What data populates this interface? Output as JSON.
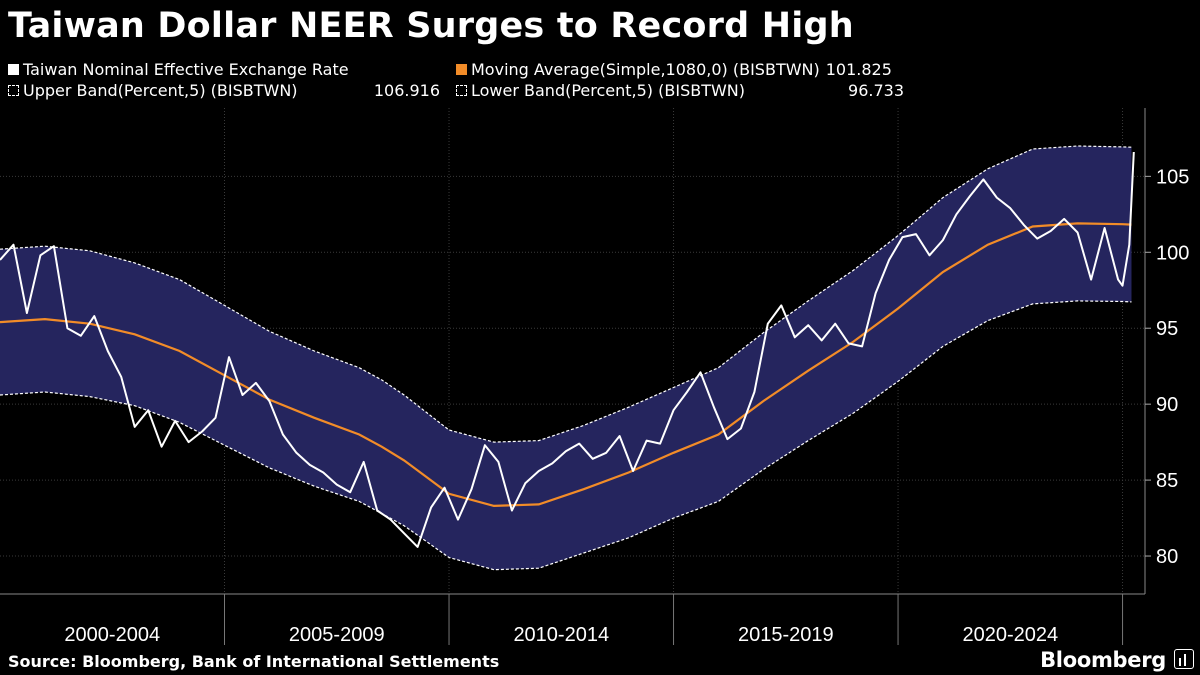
{
  "header": {
    "title": "Taiwan Dollar NEER Surges to Record High"
  },
  "legend": {
    "items": [
      {
        "label": "Taiwan Nominal Effective Exchange Rate",
        "value": "",
        "swatch": "#ffffff"
      },
      {
        "label": "Moving Average(Simple,1080,0) (BISBTWN)",
        "value": "101.825",
        "swatch": "#f28c28"
      },
      {
        "label": "Upper Band(Percent,5) (BISBTWN)",
        "value": "106.916",
        "swatch": "#ffffff"
      },
      {
        "label": "Lower Band(Percent,5) (BISBTWN)",
        "value": "96.733",
        "swatch": "#ffffff"
      }
    ]
  },
  "footer": {
    "source": "Source: Bloomberg, Bank of International Settlements",
    "brand": "Bloomberg"
  },
  "colors": {
    "background": "#000000",
    "band_fill": "#25255e",
    "series": "#ffffff",
    "moving_average": "#f28c28",
    "grid": "#3a3a3a"
  },
  "chart_data": {
    "type": "line",
    "title": "Taiwan Dollar NEER Surges to Record High",
    "xlabel": "",
    "ylabel": "",
    "x_tick_labels": [
      "2000-2004",
      "2005-2009",
      "2010-2014",
      "2015-2019",
      "2020-2024"
    ],
    "xlim": [
      2000.0,
      2025.5
    ],
    "ylim": [
      77.5,
      109.5
    ],
    "y_ticks": [
      80,
      85,
      90,
      95,
      100,
      105
    ],
    "y_axis_side": "right",
    "grid": true,
    "legend_position": "top",
    "series": [
      {
        "name": "Taiwan Nominal Effective Exchange Rate",
        "color": "#ffffff",
        "x": [
          2000.0,
          2000.3,
          2000.6,
          2000.9,
          2001.2,
          2001.5,
          2001.8,
          2002.1,
          2002.4,
          2002.7,
          2003.0,
          2003.3,
          2003.6,
          2003.9,
          2004.2,
          2004.5,
          2004.8,
          2005.1,
          2005.4,
          2005.7,
          2006.0,
          2006.3,
          2006.6,
          2006.9,
          2007.2,
          2007.5,
          2007.8,
          2008.1,
          2008.4,
          2008.7,
          2009.0,
          2009.3,
          2009.6,
          2009.9,
          2010.2,
          2010.5,
          2010.8,
          2011.1,
          2011.4,
          2011.7,
          2012.0,
          2012.3,
          2012.6,
          2012.9,
          2013.2,
          2013.5,
          2013.8,
          2014.1,
          2014.4,
          2014.7,
          2015.0,
          2015.3,
          2015.6,
          2015.9,
          2016.2,
          2016.5,
          2016.8,
          2017.1,
          2017.4,
          2017.7,
          2018.0,
          2018.3,
          2018.6,
          2018.9,
          2019.2,
          2019.5,
          2019.8,
          2020.1,
          2020.4,
          2020.7,
          2021.0,
          2021.3,
          2021.6,
          2021.9,
          2022.2,
          2022.5,
          2022.8,
          2023.1,
          2023.4,
          2023.7,
          2024.0,
          2024.3,
          2024.6,
          2024.9,
          2025.0,
          2025.15,
          2025.25
        ],
        "y": [
          99.5,
          100.5,
          96.0,
          99.8,
          100.4,
          95.0,
          94.5,
          95.8,
          93.5,
          91.8,
          88.5,
          89.6,
          87.2,
          88.9,
          87.5,
          88.2,
          89.1,
          93.1,
          90.6,
          91.4,
          90.2,
          88.0,
          86.8,
          86.0,
          85.5,
          84.7,
          84.2,
          86.2,
          83.0,
          82.4,
          81.5,
          80.6,
          83.2,
          84.5,
          82.4,
          84.4,
          87.3,
          86.2,
          83.0,
          84.8,
          85.6,
          86.1,
          86.9,
          87.4,
          86.4,
          86.8,
          87.9,
          85.6,
          87.6,
          87.4,
          89.6,
          90.8,
          92.1,
          89.8,
          87.7,
          88.4,
          90.8,
          95.3,
          96.5,
          94.4,
          95.2,
          94.2,
          95.3,
          94.0,
          93.8,
          97.3,
          99.5,
          101.0,
          101.2,
          99.8,
          100.8,
          102.5,
          103.7,
          104.8,
          103.6,
          102.9,
          101.8,
          100.9,
          101.4,
          102.2,
          101.3,
          98.2,
          101.6,
          98.2,
          97.8,
          100.5,
          106.6
        ]
      },
      {
        "name": "Moving Average(Simple,1080,0) (BISBTWN)",
        "color": "#f28c28",
        "x": [
          2000.0,
          2001.0,
          2002.0,
          2003.0,
          2004.0,
          2005.0,
          2006.0,
          2007.0,
          2008.0,
          2008.5,
          2009.0,
          2010.0,
          2011.0,
          2012.0,
          2013.0,
          2014.0,
          2015.0,
          2016.0,
          2017.0,
          2018.0,
          2019.0,
          2020.0,
          2021.0,
          2022.0,
          2023.0,
          2024.0,
          2025.0,
          2025.2
        ],
        "y": [
          95.4,
          95.6,
          95.3,
          94.6,
          93.5,
          91.9,
          90.3,
          89.1,
          88.0,
          87.2,
          86.3,
          84.1,
          83.3,
          83.4,
          84.4,
          85.5,
          86.8,
          88.0,
          90.2,
          92.2,
          94.1,
          96.3,
          98.7,
          100.5,
          101.7,
          101.9,
          101.85,
          101.825
        ]
      },
      {
        "name": "Upper Band(Percent,5) (BISBTWN)",
        "color": "#ffffff",
        "x": [
          2000.0,
          2001.0,
          2002.0,
          2003.0,
          2004.0,
          2005.0,
          2006.0,
          2007.0,
          2008.0,
          2008.5,
          2009.0,
          2010.0,
          2011.0,
          2012.0,
          2013.0,
          2014.0,
          2015.0,
          2016.0,
          2017.0,
          2018.0,
          2019.0,
          2020.0,
          2021.0,
          2022.0,
          2023.0,
          2024.0,
          2025.0,
          2025.2
        ],
        "y": [
          100.2,
          100.4,
          100.1,
          99.3,
          98.2,
          96.5,
          94.8,
          93.5,
          92.4,
          91.6,
          90.6,
          88.3,
          87.5,
          87.6,
          88.6,
          89.8,
          91.1,
          92.4,
          94.7,
          96.8,
          98.8,
          101.1,
          103.6,
          105.5,
          106.8,
          107.0,
          106.94,
          106.916
        ]
      },
      {
        "name": "Lower Band(Percent,5) (BISBTWN)",
        "color": "#ffffff",
        "x": [
          2000.0,
          2001.0,
          2002.0,
          2003.0,
          2004.0,
          2005.0,
          2006.0,
          2007.0,
          2008.0,
          2008.5,
          2009.0,
          2010.0,
          2011.0,
          2012.0,
          2013.0,
          2014.0,
          2015.0,
          2016.0,
          2017.0,
          2018.0,
          2019.0,
          2020.0,
          2021.0,
          2022.0,
          2023.0,
          2024.0,
          2025.0,
          2025.2
        ],
        "y": [
          90.6,
          90.8,
          90.5,
          89.9,
          88.8,
          87.3,
          85.8,
          84.6,
          83.6,
          82.8,
          82.0,
          79.9,
          79.1,
          79.2,
          80.2,
          81.2,
          82.5,
          83.6,
          85.7,
          87.6,
          89.4,
          91.5,
          93.8,
          95.5,
          96.6,
          96.8,
          96.76,
          96.733
        ]
      }
    ]
  }
}
